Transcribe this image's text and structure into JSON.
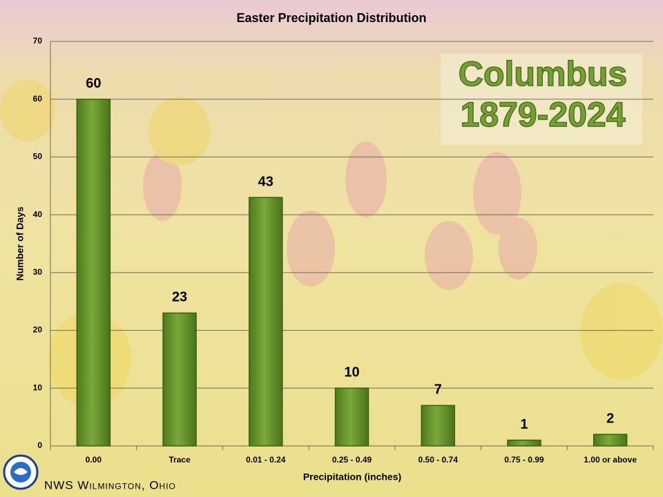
{
  "chart_data": {
    "type": "bar",
    "title": "Easter Precipitation Distribution",
    "annotation": [
      "Columbus",
      "1879-2024"
    ],
    "x_label": "Precipitation (inches)",
    "y_label": "Number of Days",
    "source": "NWS Wilmington, Ohio",
    "categories": [
      "0.00",
      "Trace",
      "0.01 - 0.24",
      "0.25 - 0.49",
      "0.50 - 0.74",
      "0.75 - 0.99",
      "1.00 or above"
    ],
    "values": [
      60,
      23,
      43,
      10,
      7,
      1,
      2
    ],
    "color": "#6b9a2c",
    "ylim": [
      0,
      70
    ],
    "yticks": [
      0,
      10,
      20,
      30,
      40,
      50,
      60,
      70
    ],
    "grid": true
  }
}
